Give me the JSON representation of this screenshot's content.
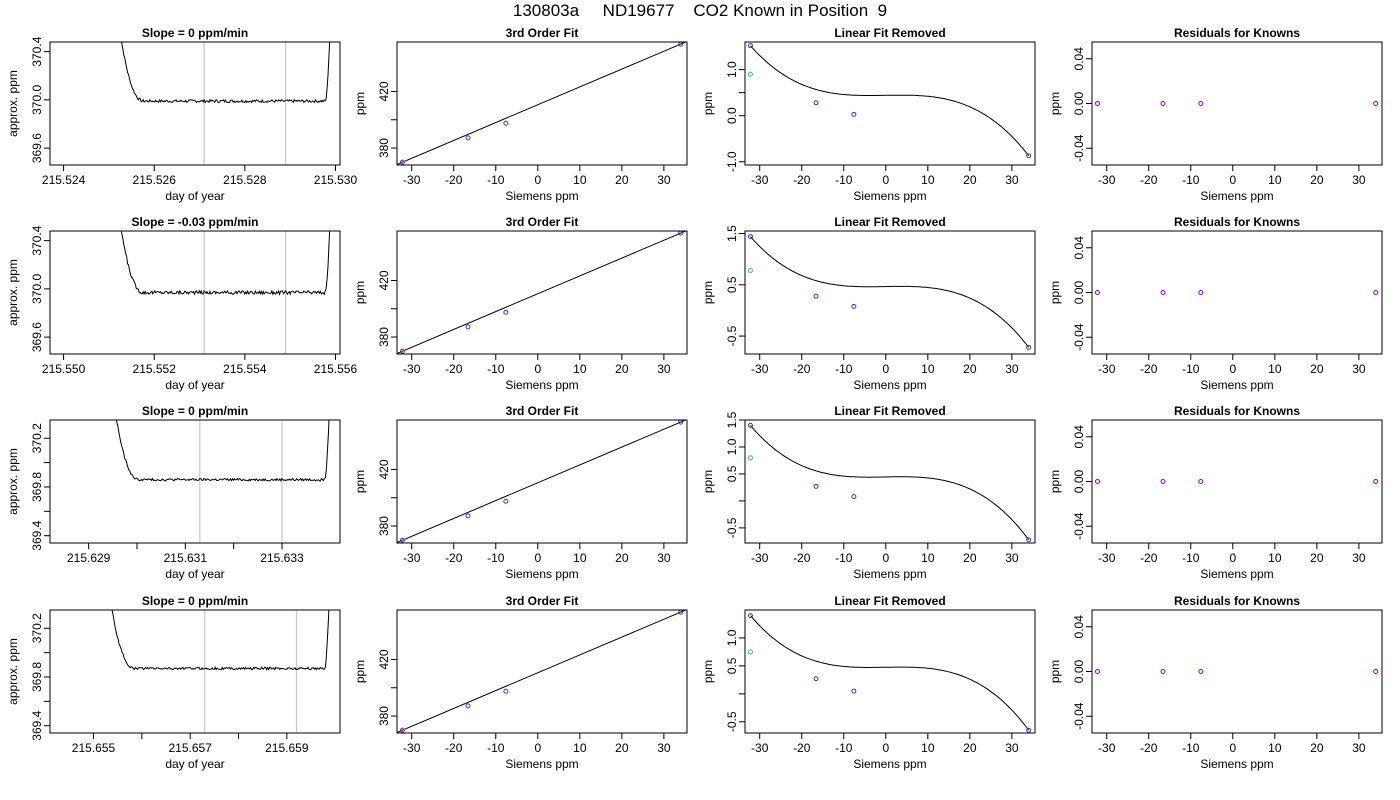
{
  "title": "130803a     ND19677    CO2 Known in Position  9",
  "colors": {
    "line": "#000000",
    "window_marker": "#c8c8c8",
    "known_point": "#3333dd",
    "fit_point_cyan": "#22bbdd",
    "residual_point": "#8800cc",
    "highlight_point": "#ff6666"
  },
  "chart_data": [
    {
      "type": "line",
      "panel": "row1-time",
      "title": "Slope =  0  ppm/min",
      "xlabel": "day of year",
      "ylabel": "approx. ppm",
      "xlim": [
        215.5237,
        215.5301
      ],
      "ylim": [
        369.46,
        370.48
      ],
      "xticks": [
        215.524,
        215.526,
        215.528,
        215.53
      ],
      "xticklabels": [
        "215.524",
        "215.526",
        "215.528",
        "215.530"
      ],
      "yticks": [
        369.6,
        370.0,
        370.4
      ],
      "yticklabels": [
        "369.6",
        "370.0",
        "370.4"
      ],
      "markers": [
        215.5271,
        215.5289
      ],
      "x_start": 215.5252,
      "x_end": 215.5299,
      "plateau": 369.99,
      "jitter": 0.012
    },
    {
      "type": "line",
      "panel": "row1-fit",
      "title": "3rd Order Fit",
      "xlabel": "Siemens ppm",
      "ylabel": "ppm",
      "xlim": [
        -33.5,
        35.5
      ],
      "ylim": [
        368.0,
        455.0
      ],
      "xticks": [
        -30,
        -20,
        -10,
        0,
        10,
        20,
        30
      ],
      "xticklabels": [
        "-30",
        "-20",
        "-10",
        "0",
        "10",
        "20",
        "30"
      ],
      "yticks": [
        380,
        400,
        420
      ],
      "yticklabels": [
        "380",
        "",
        "420"
      ],
      "points_x": [
        -32.2,
        -16.6,
        -7.6,
        34.0
      ],
      "points_y": [
        370.0,
        387.2,
        397.5,
        453.5
      ]
    },
    {
      "type": "line",
      "panel": "row1-linear-removed",
      "title": "Linear Fit Removed",
      "xlabel": "Siemens ppm",
      "ylabel": "ppm",
      "xlim": [
        -33.5,
        35.5
      ],
      "ylim": [
        -1.07,
        1.6
      ],
      "xticks": [
        -30,
        -20,
        -10,
        0,
        10,
        20,
        30
      ],
      "xticklabels": [
        "-30",
        "-20",
        "-10",
        "0",
        "10",
        "20",
        "30"
      ],
      "yticks": [
        -1.0,
        0.0,
        0.5,
        1.0
      ],
      "yticklabels": [
        "-1.0",
        "0.0",
        "",
        "1.0"
      ],
      "poly": [
        0.055,
        0.0019,
        -2e-05,
        -4.27e-05
      ],
      "points_x": [
        -32.2,
        -16.6,
        -7.6,
        34.0
      ],
      "points_y": [
        1.52,
        0.28,
        0.03,
        -0.87
      ],
      "cyan_x": [
        -32.2
      ],
      "cyan_y": [
        0.9
      ]
    },
    {
      "type": "scatter",
      "panel": "row1-residuals",
      "title": "Residuals for Knowns",
      "xlabel": "Siemens ppm",
      "ylabel": "ppm",
      "xlim": [
        -33.5,
        35.5
      ],
      "ylim": [
        -0.055,
        0.055
      ],
      "xticks": [
        -30,
        -20,
        -10,
        0,
        10,
        20,
        30
      ],
      "xticklabels": [
        "-30",
        "-20",
        "-10",
        "0",
        "10",
        "20",
        "30"
      ],
      "yticks": [
        -0.04,
        0.0,
        0.04
      ],
      "yticklabels": [
        "-0.04",
        "0.00",
        "0.04"
      ],
      "points_x": [
        -32.2,
        -16.6,
        -7.6,
        34.0
      ],
      "points_y": [
        0,
        0,
        0,
        0
      ]
    },
    {
      "type": "line",
      "panel": "row2-time",
      "title": "Slope =  -0.03  ppm/min",
      "xlabel": "day of year",
      "ylabel": "approx. ppm",
      "xlim": [
        215.5497,
        215.5561
      ],
      "ylim": [
        369.46,
        370.48
      ],
      "xticks": [
        215.55,
        215.552,
        215.554,
        215.556
      ],
      "xticklabels": [
        "215.550",
        "215.552",
        "215.554",
        "215.556"
      ],
      "yticks": [
        369.6,
        370.0,
        370.4
      ],
      "yticklabels": [
        "369.6",
        "370.0",
        "370.4"
      ],
      "markers": [
        215.5531,
        215.5549
      ],
      "x_start": 215.5512,
      "x_end": 215.5559,
      "plateau": 369.97,
      "jitter": 0.015
    },
    {
      "type": "line",
      "panel": "row2-fit",
      "title": "3rd Order Fit",
      "xlabel": "Siemens ppm",
      "ylabel": "ppm",
      "xlim": [
        -33.5,
        35.5
      ],
      "ylim": [
        368.0,
        455.0
      ],
      "xticks": [
        -30,
        -20,
        -10,
        0,
        10,
        20,
        30
      ],
      "xticklabels": [
        "-30",
        "-20",
        "-10",
        "0",
        "10",
        "20",
        "30"
      ],
      "yticks": [
        380,
        400,
        420
      ],
      "yticklabels": [
        "380",
        "",
        "420"
      ],
      "points_x": [
        -32.2,
        -16.6,
        -7.6,
        34.0
      ],
      "points_y": [
        370.0,
        387.2,
        397.5,
        453.5
      ]
    },
    {
      "type": "line",
      "panel": "row2-linear-removed",
      "title": "Linear Fit Removed",
      "xlabel": "Siemens ppm",
      "ylabel": "ppm",
      "xlim": [
        -33.5,
        35.5
      ],
      "ylim": [
        -0.85,
        1.55
      ],
      "xticks": [
        -30,
        -20,
        -10,
        0,
        10,
        20,
        30
      ],
      "xticklabels": [
        "-30",
        "-20",
        "-10",
        "0",
        "10",
        "20",
        "30"
      ],
      "yticks": [
        -0.5,
        0.5,
        1.5
      ],
      "yticklabels": [
        "-0.5",
        "0.5",
        "1.5"
      ],
      "poly": [
        0.055,
        0.0019,
        -2e-05,
        -4.27e-05
      ],
      "points_x": [
        -32.2,
        -16.6,
        -7.6,
        34.0
      ],
      "points_y": [
        1.44,
        0.28,
        0.08,
        -0.72
      ],
      "cyan_x": [
        -32.2
      ],
      "cyan_y": [
        0.78
      ]
    },
    {
      "type": "scatter",
      "panel": "row2-residuals",
      "title": "Residuals for Knowns",
      "xlabel": "Siemens ppm",
      "ylabel": "ppm",
      "xlim": [
        -33.5,
        35.5
      ],
      "ylim": [
        -0.055,
        0.055
      ],
      "xticks": [
        -30,
        -20,
        -10,
        0,
        10,
        20,
        30
      ],
      "xticklabels": [
        "-30",
        "-20",
        "-10",
        "0",
        "10",
        "20",
        "30"
      ],
      "yticks": [
        -0.04,
        0.0,
        0.04
      ],
      "yticklabels": [
        "-0.04",
        "0.00",
        "0.04"
      ],
      "points_x": [
        -32.2,
        -16.6,
        -7.6,
        34.0
      ],
      "points_y": [
        0,
        0,
        0,
        0
      ]
    },
    {
      "type": "line",
      "panel": "row3-time",
      "title": "Slope =  0  ppm/min",
      "xlabel": "day of year",
      "ylabel": "approx. ppm",
      "xlim": [
        215.6282,
        215.6342
      ],
      "ylim": [
        369.34,
        370.35
      ],
      "xticks": [
        215.629,
        215.63,
        215.631,
        215.632,
        215.633
      ],
      "xticklabels": [
        "215.629",
        "",
        "215.631",
        "",
        "215.633"
      ],
      "yticks": [
        369.4,
        369.6,
        369.8,
        370.0,
        370.2
      ],
      "yticklabels": [
        "369.4",
        "",
        "369.8",
        "",
        "370.2"
      ],
      "markers": [
        215.6313,
        215.633
      ],
      "x_start": 215.6295,
      "x_end": 215.634,
      "plateau": 369.86,
      "jitter": 0.01
    },
    {
      "type": "line",
      "panel": "row3-fit",
      "title": "3rd Order Fit",
      "xlabel": "Siemens ppm",
      "ylabel": "ppm",
      "xlim": [
        -33.5,
        35.5
      ],
      "ylim": [
        368.0,
        455.0
      ],
      "xticks": [
        -30,
        -20,
        -10,
        0,
        10,
        20,
        30
      ],
      "xticklabels": [
        "-30",
        "-20",
        "-10",
        "0",
        "10",
        "20",
        "30"
      ],
      "yticks": [
        380,
        400,
        420
      ],
      "yticklabels": [
        "380",
        "",
        "420"
      ],
      "points_x": [
        -32.2,
        -16.6,
        -7.6,
        34.0
      ],
      "points_y": [
        370.0,
        387.2,
        397.5,
        453.5
      ]
    },
    {
      "type": "line",
      "panel": "row3-linear-removed",
      "title": "Linear Fit Removed",
      "xlabel": "Siemens ppm",
      "ylabel": "ppm",
      "xlim": [
        -33.5,
        35.5
      ],
      "ylim": [
        -0.78,
        1.5
      ],
      "xticks": [
        -30,
        -20,
        -10,
        0,
        10,
        20,
        30
      ],
      "xticklabels": [
        "-30",
        "-20",
        "-10",
        "0",
        "10",
        "20",
        "30"
      ],
      "yticks": [
        -0.5,
        0.0,
        0.5,
        1.0,
        1.5
      ],
      "yticklabels": [
        "-0.5",
        "",
        "0.5",
        "1.0",
        "1.5"
      ],
      "poly": [
        0.055,
        0.0019,
        -2e-05,
        -4.27e-05
      ],
      "points_x": [
        -32.2,
        -16.6,
        -7.6,
        34.0
      ],
      "points_y": [
        1.4,
        0.27,
        0.08,
        -0.72
      ],
      "cyan_x": [
        -32.2
      ],
      "cyan_y": [
        0.8
      ]
    },
    {
      "type": "scatter",
      "panel": "row3-residuals",
      "title": "Residuals for Knowns",
      "xlabel": "Siemens ppm",
      "ylabel": "ppm",
      "xlim": [
        -33.5,
        35.5
      ],
      "ylim": [
        -0.055,
        0.055
      ],
      "xticks": [
        -30,
        -20,
        -10,
        0,
        10,
        20,
        30
      ],
      "xticklabels": [
        "-30",
        "-20",
        "-10",
        "0",
        "10",
        "20",
        "30"
      ],
      "yticks": [
        -0.04,
        0.0,
        0.04
      ],
      "yticklabels": [
        "-0.04",
        "0.00",
        "0.04"
      ],
      "points_x": [
        -32.2,
        -16.6,
        -7.6,
        34.0
      ],
      "points_y": [
        0,
        0,
        0,
        0
      ]
    },
    {
      "type": "line",
      "panel": "row4-time",
      "title": "Slope =  0  ppm/min",
      "xlabel": "day of year",
      "ylabel": "approx. ppm",
      "xlim": [
        215.6541,
        215.6601
      ],
      "ylim": [
        369.34,
        370.35
      ],
      "xticks": [
        215.655,
        215.656,
        215.657,
        215.658,
        215.659
      ],
      "xticklabels": [
        "215.655",
        "",
        "215.657",
        "",
        "215.659"
      ],
      "yticks": [
        369.4,
        369.6,
        369.8,
        370.0,
        370.2
      ],
      "yticklabels": [
        "369.4",
        "",
        "369.8",
        "",
        "370.2"
      ],
      "markers": [
        215.6573,
        215.6592
      ],
      "x_start": 215.6553,
      "x_end": 215.6599,
      "plateau": 369.87,
      "jitter": 0.01
    },
    {
      "type": "line",
      "panel": "row4-fit",
      "title": "3rd Order Fit",
      "xlabel": "Siemens ppm",
      "ylabel": "ppm",
      "xlim": [
        -33.5,
        35.5
      ],
      "ylim": [
        368.0,
        455.0
      ],
      "xticks": [
        -30,
        -20,
        -10,
        0,
        10,
        20,
        30
      ],
      "xticklabels": [
        "-30",
        "-20",
        "-10",
        "0",
        "10",
        "20",
        "30"
      ],
      "yticks": [
        380,
        400,
        420
      ],
      "yticklabels": [
        "380",
        "",
        "420"
      ],
      "points_x": [
        -32.2,
        -16.6,
        -7.6,
        34.0
      ],
      "points_y": [
        370.0,
        387.2,
        397.5,
        453.5
      ]
    },
    {
      "type": "line",
      "panel": "row4-linear-removed",
      "title": "Linear Fit Removed",
      "xlabel": "Siemens ppm",
      "ylabel": "ppm",
      "xlim": [
        -33.5,
        35.5
      ],
      "ylim": [
        -0.7,
        1.5
      ],
      "xticks": [
        -30,
        -20,
        -10,
        0,
        10,
        20,
        30
      ],
      "xticklabels": [
        "-30",
        "-20",
        "-10",
        "0",
        "10",
        "20",
        "30"
      ],
      "yticks": [
        -0.5,
        0.0,
        0.5,
        1.0
      ],
      "yticklabels": [
        "-0.5",
        "",
        "0.5",
        "1.0"
      ],
      "poly": [
        0.055,
        0.0019,
        -2e-05,
        -4.27e-05
      ],
      "points_x": [
        -32.2,
        -16.6,
        -7.6,
        34.0
      ],
      "points_y": [
        1.4,
        0.27,
        0.05,
        -0.65
      ],
      "cyan_x": [
        -32.2
      ],
      "cyan_y": [
        0.75
      ]
    },
    {
      "type": "scatter",
      "panel": "row4-residuals",
      "title": "Residuals for Knowns",
      "xlabel": "Siemens ppm",
      "ylabel": "ppm",
      "xlim": [
        -33.5,
        35.5
      ],
      "ylim": [
        -0.055,
        0.055
      ],
      "xticks": [
        -30,
        -20,
        -10,
        0,
        10,
        20,
        30
      ],
      "xticklabels": [
        "-30",
        "-20",
        "-10",
        "0",
        "10",
        "20",
        "30"
      ],
      "yticks": [
        -0.04,
        0.0,
        0.04
      ],
      "yticklabels": [
        "-0.04",
        "0.00",
        "0.04"
      ],
      "points_x": [
        -32.2,
        -16.6,
        -7.6,
        34.0
      ],
      "points_y": [
        0,
        0,
        0,
        0
      ]
    }
  ]
}
